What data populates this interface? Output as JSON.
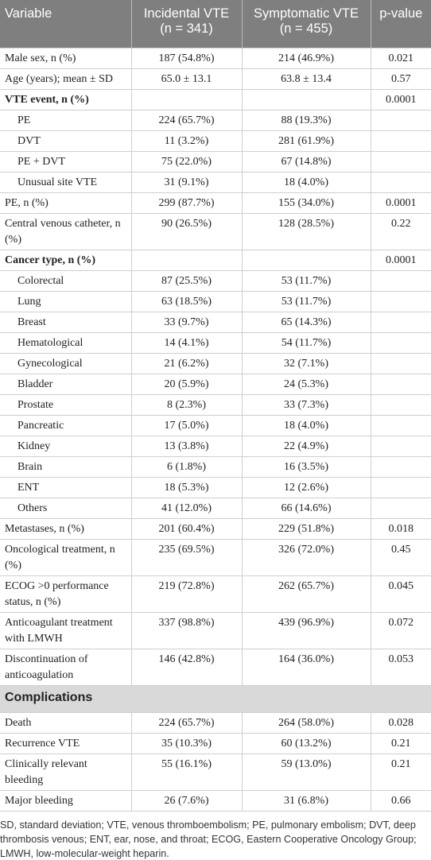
{
  "table": {
    "header": [
      [
        "Variable"
      ],
      [
        "Incidental VTE",
        "(n = 341)"
      ],
      [
        "Symptomatic VTE",
        "(n = 455)"
      ],
      [
        "p-value"
      ]
    ],
    "rows": [
      {
        "cells": [
          "Male sex, n (%)",
          "187 (54.8%)",
          "214 (46.9%)",
          "0.021"
        ]
      },
      {
        "cells": [
          "Age (years); mean ± SD",
          "65.0 ± 13.1",
          "63.8 ± 13.4",
          "0.57"
        ]
      },
      {
        "cells": [
          "VTE event, n (%)",
          "",
          "",
          "0.0001"
        ],
        "style": "bold"
      },
      {
        "cells": [
          "PE",
          "224 (65.7%)",
          "88 (19.3%)",
          ""
        ],
        "style": "sub"
      },
      {
        "cells": [
          "DVT",
          "11 (3.2%)",
          "281 (61.9%)",
          ""
        ],
        "style": "sub"
      },
      {
        "cells": [
          "PE + DVT",
          "75 (22.0%)",
          "67 (14.8%)",
          ""
        ],
        "style": "sub"
      },
      {
        "cells": [
          "Unusual site VTE",
          "31 (9.1%)",
          "18 (4.0%)",
          ""
        ],
        "style": "sub"
      },
      {
        "cells": [
          "PE, n (%)",
          "299 (87.7%)",
          "155 (34.0%)",
          "0.0001"
        ]
      },
      {
        "cells": [
          "Central venous catheter, n (%)",
          "90 (26.5%)",
          "128 (28.5%)",
          "0.22"
        ]
      },
      {
        "cells": [
          "Cancer type, n (%)",
          "",
          "",
          "0.0001"
        ],
        "style": "bold"
      },
      {
        "cells": [
          "Colorectal",
          "87 (25.5%)",
          "53 (11.7%)",
          ""
        ],
        "style": "sub"
      },
      {
        "cells": [
          "Lung",
          "63 (18.5%)",
          "53 (11.7%)",
          ""
        ],
        "style": "sub"
      },
      {
        "cells": [
          "Breast",
          "33 (9.7%)",
          "65 (14.3%)",
          ""
        ],
        "style": "sub"
      },
      {
        "cells": [
          "Hematological",
          "14 (4.1%)",
          "54 (11.7%)",
          ""
        ],
        "style": "sub"
      },
      {
        "cells": [
          "Gynecological",
          "21 (6.2%)",
          "32 (7.1%)",
          ""
        ],
        "style": "sub"
      },
      {
        "cells": [
          "Bladder",
          "20 (5.9%)",
          "24 (5.3%)",
          ""
        ],
        "style": "sub"
      },
      {
        "cells": [
          "Prostate",
          "8 (2.3%)",
          "33 (7.3%)",
          ""
        ],
        "style": "sub"
      },
      {
        "cells": [
          "Pancreatic",
          "17 (5.0%)",
          "18 (4.0%)",
          ""
        ],
        "style": "sub"
      },
      {
        "cells": [
          "Kidney",
          "13 (3.8%)",
          "22 (4.9%)",
          ""
        ],
        "style": "sub"
      },
      {
        "cells": [
          "Brain",
          "6 (1.8%)",
          "16 (3.5%)",
          ""
        ],
        "style": "sub"
      },
      {
        "cells": [
          "ENT",
          "18 (5.3%)",
          "12 (2.6%)",
          ""
        ],
        "style": "sub"
      },
      {
        "cells": [
          "Others",
          "41 (12.0%)",
          "66 (14.6%)",
          ""
        ],
        "style": "sub"
      },
      {
        "cells": [
          "Metastases, n (%)",
          "201 (60.4%)",
          "229 (51.8%)",
          "0.018"
        ]
      },
      {
        "cells": [
          "Oncological treatment, n (%)",
          "235 (69.5%)",
          "326 (72.0%)",
          "0.45"
        ]
      },
      {
        "cells": [
          "ECOG >0 performance status, n (%)",
          "219 (72.8%)",
          "262 (65.7%)",
          "0.045"
        ]
      },
      {
        "cells": [
          "Anticoagulant treatment with LMWH",
          "337 (98.8%)",
          "439 (96.9%)",
          "0.072"
        ]
      },
      {
        "cells": [
          "Discontinuation of anticoagulation",
          "146 (42.8%)",
          "164 (36.0%)",
          "0.053"
        ]
      },
      {
        "section": "Complications"
      },
      {
        "cells": [
          "Death",
          "224 (65.7%)",
          "264 (58.0%)",
          "0.028"
        ]
      },
      {
        "cells": [
          "Recurrence VTE",
          "35 (10.3%)",
          "60 (13.2%)",
          "0.21"
        ]
      },
      {
        "cells": [
          "Clinically relevant bleeding",
          "55 (16.1%)",
          "59 (13.0%)",
          "0.21"
        ]
      },
      {
        "cells": [
          "Major bleeding",
          "26 (7.6%)",
          "31 (6.8%)",
          "0.66"
        ]
      }
    ]
  },
  "footnote": "SD, standard deviation; VTE, venous thromboembolism; PE, pulmonary embolism; DVT, deep thrombosis venous; ENT, ear, nose, and throat; ECOG, Eastern Cooperative Oncology Group; LMWH, low-molecular-weight heparin."
}
